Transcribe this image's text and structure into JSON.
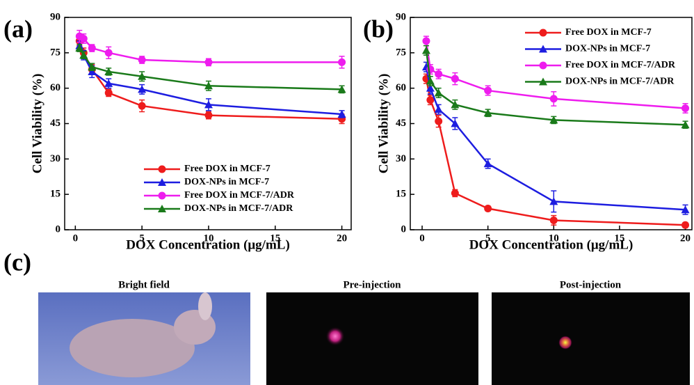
{
  "chart_data": [
    {
      "type": "line",
      "panel_label": "(a)",
      "x_label": "DOX Concentration (μg/mL)",
      "y_label": "Cell Viability (%)",
      "x": [
        0.3125,
        0.625,
        1.25,
        2.5,
        5,
        10,
        20
      ],
      "xlim": [
        -0.8,
        20.7
      ],
      "xticks": [
        0,
        5,
        10,
        15,
        20
      ],
      "ylim": [
        0,
        90
      ],
      "yticks": [
        0,
        15,
        30,
        45,
        60,
        75,
        90
      ],
      "legend": "lower right",
      "series": [
        {
          "name": "Free DOX in MCF-7",
          "color": "#ee1c1c",
          "marker": "circle",
          "values": [
            80,
            75,
            68,
            58,
            52.5,
            48.5,
            47
          ],
          "errors": [
            2,
            2,
            2,
            1.5,
            2.5,
            1.5,
            2
          ]
        },
        {
          "name": "DOX-NPs in MCF-7",
          "color": "#1d1de0",
          "marker": "triangle",
          "values": [
            78,
            74,
            67,
            62,
            59.5,
            53,
            49
          ],
          "errors": [
            2,
            2,
            2.5,
            2,
            2,
            2.5,
            1.5
          ]
        },
        {
          "name": "Free DOX in MCF-7/ADR",
          "color": "#ee1cee",
          "marker": "circle",
          "values": [
            82,
            81,
            77,
            75,
            72,
            71,
            71
          ],
          "errors": [
            2.5,
            2,
            1.5,
            2.5,
            1.5,
            1.5,
            2.5
          ]
        },
        {
          "name": "DOX-NPs in MCF-7/ADR",
          "color": "#1a7a1a",
          "marker": "triangle",
          "values": [
            77,
            74,
            69,
            67,
            65,
            61,
            59.5
          ],
          "errors": [
            1.5,
            1.5,
            1.5,
            1.5,
            2,
            2,
            1.5
          ]
        }
      ]
    },
    {
      "type": "line",
      "panel_label": "(b)",
      "x_label": "DOX Concentration (μg/mL)",
      "y_label": "Cell Viability (%)",
      "x": [
        0.3125,
        0.625,
        1.25,
        2.5,
        5,
        10,
        20
      ],
      "xlim": [
        -0.9,
        20.5
      ],
      "xticks": [
        0,
        5,
        10,
        15,
        20
      ],
      "ylim": [
        0,
        90
      ],
      "yticks": [
        0,
        15,
        30,
        45,
        60,
        75,
        90
      ],
      "legend": "upper right",
      "series": [
        {
          "name": "Free DOX in MCF-7",
          "color": "#ee1c1c",
          "marker": "circle",
          "values": [
            64,
            55,
            46,
            15.5,
            9,
            4,
            2
          ],
          "errors": [
            2,
            2,
            2.5,
            1.5,
            1,
            2,
            1
          ]
        },
        {
          "name": "DOX-NPs in MCF-7",
          "color": "#1d1de0",
          "marker": "triangle",
          "values": [
            69,
            60,
            51,
            45,
            28,
            12,
            8.5
          ],
          "errors": [
            2,
            2.5,
            2,
            2.5,
            2,
            4.5,
            2
          ]
        },
        {
          "name": "Free DOX in MCF-7/ADR",
          "color": "#ee1cee",
          "marker": "circle",
          "values": [
            80,
            68,
            66,
            64,
            59,
            55.5,
            51.5
          ],
          "errors": [
            2,
            2,
            2,
            2.5,
            2,
            3,
            2
          ]
        },
        {
          "name": "DOX-NPs in MCF-7/ADR",
          "color": "#1a7a1a",
          "marker": "triangle",
          "values": [
            76,
            63,
            58,
            53,
            49.5,
            46.5,
            44.5
          ],
          "errors": [
            2,
            2,
            2,
            2,
            1.5,
            1.5,
            1.5
          ]
        }
      ]
    }
  ],
  "panel_c": {
    "label": "(c)",
    "captions": [
      "Bright field",
      "Pre-injection",
      "Post-injection"
    ]
  }
}
